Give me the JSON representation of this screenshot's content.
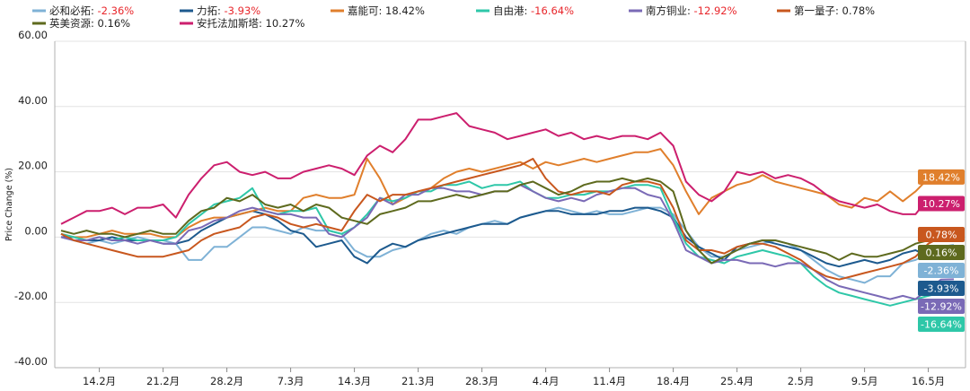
{
  "chart_data": {
    "type": "line",
    "ylabel": "Price Change (%)",
    "ylim": [
      -40,
      60
    ],
    "yticks": [
      "60.00",
      "40.00",
      "20.00",
      "0.00",
      "-20.00",
      "-40.00"
    ],
    "xticks": [
      "14.2月",
      "21.2月",
      "28.2月",
      "7.3月",
      "14.3月",
      "21.3月",
      "28.3月",
      "4.4月",
      "11.4月",
      "18.4月",
      "25.4月",
      "2.5月",
      "9.5月",
      "16.5月"
    ],
    "xtick_index": [
      3,
      8,
      13,
      18,
      23,
      28,
      33,
      38,
      43,
      48,
      53,
      58,
      63,
      68
    ],
    "grid": true,
    "legend_position": "top",
    "series": [
      {
        "name": "必和必拓",
        "final_label": "-2.36%",
        "color": "#7fb2d6",
        "values": [
          0,
          -1,
          -2,
          -1,
          -2,
          -1,
          0,
          -1,
          -1,
          -2,
          -7,
          -7,
          -3,
          -3,
          0,
          3,
          3,
          2,
          1,
          3,
          2,
          2,
          1,
          -4,
          -6,
          -6,
          -4,
          -3,
          -1,
          1,
          2,
          1,
          3,
          4,
          5,
          4,
          6,
          7,
          8,
          9,
          8,
          7,
          8,
          7,
          7,
          8,
          9,
          9,
          7,
          2,
          -3,
          -6,
          -6,
          -4,
          -3,
          -2,
          -1,
          -2,
          -4,
          -7,
          -10,
          -12,
          -13,
          -14,
          -12,
          -12,
          -8,
          -7,
          -5,
          -3,
          -2.36
        ]
      },
      {
        "name": "力拓",
        "final_label": "-3.93%",
        "color": "#1d5a8e",
        "values": [
          0,
          0,
          -1,
          -1,
          0,
          -1,
          -1,
          -1,
          -2,
          -2,
          -1,
          2,
          4,
          6,
          7,
          8,
          7,
          5,
          2,
          1,
          -3,
          -2,
          -1,
          -6,
          -8,
          -4,
          -2,
          -3,
          -1,
          0,
          1,
          2,
          3,
          4,
          4,
          4,
          6,
          7,
          8,
          8,
          7,
          7,
          7,
          8,
          8,
          9,
          9,
          8,
          6,
          0,
          -3,
          -5,
          -7,
          -3,
          -2,
          -1,
          -2,
          -3,
          -4,
          -6,
          -8,
          -9,
          -8,
          -7,
          -8,
          -7,
          -5,
          -4,
          -6,
          -5,
          -3.93
        ]
      },
      {
        "name": "嘉能可",
        "final_label": "18.42%",
        "color": "#e07f2c",
        "values": [
          1,
          0,
          0,
          1,
          2,
          1,
          1,
          1,
          0,
          0,
          3,
          5,
          6,
          6,
          7,
          8,
          9,
          8,
          8,
          12,
          13,
          12,
          12,
          13,
          24,
          18,
          10,
          12,
          14,
          15,
          18,
          20,
          21,
          20,
          21,
          22,
          23,
          21,
          23,
          22,
          23,
          24,
          23,
          24,
          25,
          26,
          26,
          27,
          22,
          14,
          7,
          12,
          14,
          16,
          17,
          19,
          17,
          16,
          15,
          14,
          13,
          10,
          9,
          12,
          11,
          14,
          11,
          14,
          18,
          18.42
        ]
      },
      {
        "name": "自由港",
        "final_label": "-16.64%",
        "color": "#2ec7a8",
        "values": [
          1,
          0,
          -1,
          0,
          -1,
          0,
          -1,
          -1,
          -1,
          0,
          4,
          7,
          10,
          11,
          12,
          15,
          8,
          7,
          8,
          8,
          9,
          2,
          1,
          3,
          7,
          12,
          11,
          12,
          14,
          14,
          16,
          16,
          17,
          15,
          16,
          16,
          17,
          14,
          12,
          12,
          13,
          13,
          14,
          14,
          15,
          16,
          16,
          15,
          6,
          -2,
          -6,
          -7,
          -8,
          -6,
          -5,
          -4,
          -5,
          -6,
          -8,
          -12,
          -15,
          -17,
          -18,
          -19,
          -20,
          -21,
          -20,
          -19,
          -18,
          -17,
          -16.64
        ]
      },
      {
        "name": "南方铜业",
        "final_label": "-12.92%",
        "color": "#7a6ab6",
        "values": [
          0,
          -1,
          -1,
          0,
          -1,
          -1,
          -2,
          -1,
          -2,
          -2,
          2,
          3,
          5,
          6,
          8,
          9,
          8,
          7,
          7,
          6,
          6,
          1,
          0,
          3,
          6,
          12,
          10,
          13,
          13,
          15,
          15,
          14,
          14,
          13,
          14,
          14,
          16,
          14,
          12,
          11,
          12,
          11,
          13,
          14,
          15,
          15,
          13,
          12,
          5,
          -4,
          -6,
          -8,
          -7,
          -7,
          -8,
          -8,
          -9,
          -8,
          -8,
          -10,
          -13,
          -15,
          -16,
          -17,
          -18,
          -19,
          -18,
          -19,
          -16,
          -13,
          -12.92
        ]
      },
      {
        "name": "第一量子",
        "final_label": "0.78%",
        "color": "#c8571e",
        "values": [
          1,
          -1,
          -2,
          -3,
          -4,
          -5,
          -6,
          -6,
          -6,
          -5,
          -4,
          -1,
          1,
          2,
          3,
          6,
          7,
          6,
          4,
          3,
          4,
          3,
          2,
          8,
          13,
          11,
          13,
          13,
          14,
          15,
          16,
          17,
          18,
          19,
          20,
          21,
          22,
          24,
          18,
          14,
          13,
          14,
          14,
          13,
          16,
          17,
          17,
          16,
          9,
          -1,
          -4,
          -4,
          -5,
          -3,
          -2,
          -2,
          -3,
          -5,
          -7,
          -10,
          -12,
          -13,
          -12,
          -11,
          -10,
          -9,
          -8,
          -6,
          -2,
          0,
          0.78
        ]
      },
      {
        "name": "英美资源",
        "final_label": "0.16%",
        "color": "#5e6a1e",
        "values": [
          2,
          1,
          2,
          1,
          1,
          0,
          1,
          2,
          1,
          1,
          5,
          8,
          9,
          12,
          11,
          13,
          10,
          9,
          10,
          8,
          10,
          9,
          6,
          5,
          4,
          7,
          8,
          9,
          11,
          11,
          12,
          13,
          12,
          13,
          14,
          14,
          16,
          17,
          15,
          13,
          14,
          16,
          17,
          17,
          18,
          17,
          18,
          17,
          14,
          2,
          -4,
          -8,
          -6,
          -4,
          -2,
          -1,
          -1,
          -2,
          -3,
          -4,
          -5,
          -7,
          -5,
          -6,
          -6,
          -5,
          -4,
          -2,
          -1,
          -0.2,
          0.16
        ]
      },
      {
        "name": "安托法加斯塔",
        "final_label": "10.27%",
        "color": "#cc1f6e",
        "values": [
          4,
          6,
          8,
          8,
          9,
          7,
          9,
          9,
          10,
          6,
          13,
          18,
          22,
          23,
          20,
          19,
          20,
          18,
          18,
          20,
          21,
          22,
          21,
          19,
          25,
          28,
          26,
          30,
          36,
          36,
          37,
          38,
          34,
          33,
          32,
          30,
          31,
          32,
          33,
          31,
          32,
          30,
          31,
          30,
          31,
          31,
          30,
          32,
          28,
          17,
          13,
          11,
          14,
          20,
          19,
          20,
          18,
          19,
          18,
          16,
          13,
          11,
          10,
          9,
          10,
          8,
          7,
          7,
          12,
          11,
          10.27
        ]
      }
    ]
  }
}
